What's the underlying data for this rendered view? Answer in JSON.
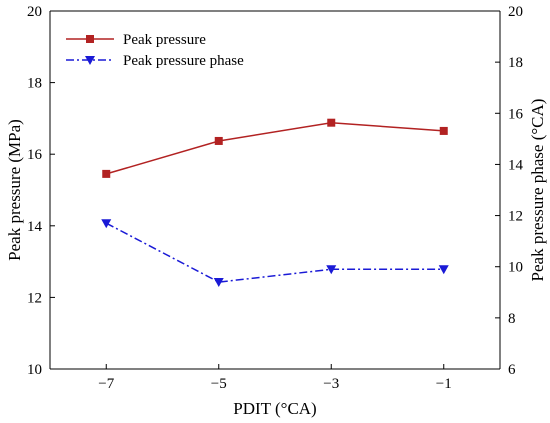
{
  "chart_data": {
    "type": "line",
    "xlabel": "PDIT (°CA)",
    "ylabel_left": "Peak pressure (MPa)",
    "ylabel_right": "Peak pressure phase (°CA)",
    "xlim": [
      -8,
      0
    ],
    "ylim_left": [
      10,
      20
    ],
    "ylim_right": [
      6,
      20
    ],
    "x_ticks": [
      -7,
      -5,
      -3,
      -1
    ],
    "x_tick_labels": [
      "−7",
      "−5",
      "−3",
      "−1"
    ],
    "y_left_ticks": [
      10,
      12,
      14,
      16,
      18,
      20
    ],
    "y_right_ticks": [
      6,
      8,
      10,
      12,
      14,
      16,
      18,
      20
    ],
    "grid": false,
    "legend_position": "top-left",
    "series": [
      {
        "name": "Peak pressure",
        "axis": "left",
        "color": "#b22222",
        "line_style": "solid",
        "marker": "square",
        "x": [
          -7,
          -5,
          -3,
          -1
        ],
        "y": [
          15.45,
          16.37,
          16.88,
          16.65
        ]
      },
      {
        "name": "Peak pressure phase",
        "axis": "right",
        "color": "#1a1ad6",
        "line_style": "dash-dot",
        "marker": "triangle-down",
        "x": [
          -7,
          -5,
          -3,
          -1
        ],
        "y": [
          11.7,
          9.4,
          9.9,
          9.9
        ]
      }
    ]
  }
}
